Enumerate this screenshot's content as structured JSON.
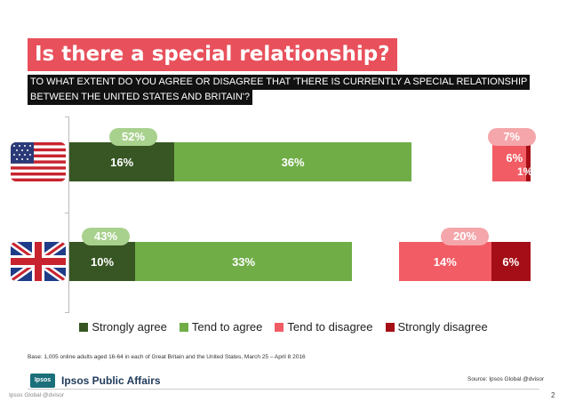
{
  "title": "Is there a special relationship?",
  "question": {
    "line1": "TO WHAT EXTENT DO YOU AGREE OR DISAGREE THAT 'THERE IS CURRENTLY A SPECIAL RELATIONSHIP",
    "line2": "BETWEEN THE UNITED STATES AND BRITAIN'?"
  },
  "colors": {
    "strongly_agree": "#375623",
    "tend_to_agree": "#70ad47",
    "tend_to_disagree": "#f25c64",
    "strongly_disagree": "#a50e16",
    "agree_bubble": "#a9d18e",
    "disagree_bubble": "#f4a6aa",
    "title_bg": "#e8505b"
  },
  "chart_data": {
    "type": "bar",
    "stacked": true,
    "orientation": "horizontal",
    "categories": [
      "United States",
      "Britain"
    ],
    "series": [
      {
        "name": "Strongly agree",
        "values": [
          16,
          10
        ],
        "labels": [
          "16%",
          "10%"
        ]
      },
      {
        "name": "Tend to agree",
        "values": [
          36,
          33
        ],
        "labels": [
          "36%",
          "33%"
        ]
      },
      {
        "name": "Tend to disagree",
        "values": [
          6,
          14
        ],
        "labels": [
          "6%",
          "14%"
        ]
      },
      {
        "name": "Strongly disagree",
        "values": [
          1,
          6
        ],
        "labels": [
          "1%",
          "6%"
        ]
      }
    ],
    "agree_totals": [
      "52%",
      "43%"
    ],
    "disagree_totals": [
      "7%",
      "20%"
    ],
    "legend_position": "bottom"
  },
  "notes": {
    "base": "Base: 1,005 online adults aged 16-64 in each of Great Britain and the United States, March 25 – April 8 2016",
    "source": "Source: Ipsos Global @dvisor"
  },
  "footer": {
    "logo_text": "Ipsos",
    "brand": "Ipsos Public Affairs",
    "copyright": "Ipsos Global @dvisor",
    "page_number": "2"
  }
}
